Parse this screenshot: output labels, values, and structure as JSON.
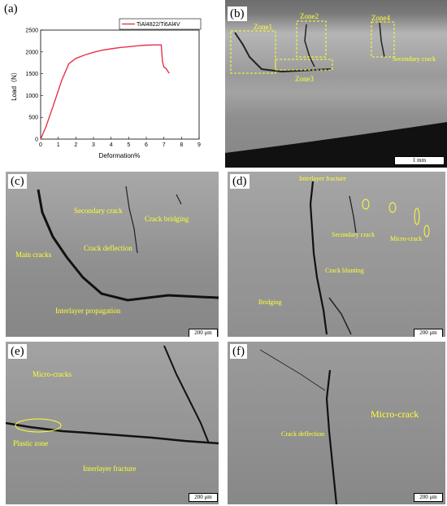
{
  "panels": {
    "a": {
      "label": "(a)"
    },
    "b": {
      "label": "(b)",
      "annotations": {
        "zone1": "Zone1",
        "zone2": "Zone2",
        "zone3": "Zone3",
        "zone4": "Zone4",
        "secondary": "Secondary crack"
      },
      "scale": "1 mm"
    },
    "c": {
      "label": "(c)",
      "annotations": {
        "secondary": "Secondary crack",
        "bridging": "Crack bridging",
        "main": "Main cracks",
        "deflection": "Crack deflection",
        "interlayer": "Interlayer propagation"
      },
      "scale": "200 μm"
    },
    "d": {
      "label": "(d)",
      "annotations": {
        "interlayer": "Interlayer fracture",
        "secondary": "Secondary crack",
        "micro": "Micro-crack",
        "blunting": "Crack blunting",
        "bridging": "Bridging"
      },
      "scale": "200 μm"
    },
    "e": {
      "label": "(e)",
      "annotations": {
        "micro": "Micro-cracks",
        "plastic": "Plastic zone",
        "interlayer": "Interlayer fracture"
      },
      "scale": "200 μm"
    },
    "f": {
      "label": "(f)",
      "annotations": {
        "micro": "Micro-crack",
        "deflection": "Crack deflection"
      },
      "scale": "200 μm"
    }
  },
  "chart_data": {
    "type": "line",
    "xlabel": "Deformation%",
    "ylabel": "Load（N）",
    "xlim": [
      0,
      9
    ],
    "ylim": [
      0,
      2500
    ],
    "xticks": [
      "0",
      "1",
      "2",
      "3",
      "4",
      "5",
      "6",
      "7",
      "8",
      "9"
    ],
    "yticks": [
      "0",
      "500",
      "1000",
      "1500",
      "2000",
      "2500"
    ],
    "legend_position": "top-right",
    "series": [
      {
        "name": "TiAl4822/Ti6Al4V",
        "color": "#e8334a",
        "x": [
          0,
          0.3,
          0.7,
          1.2,
          1.6,
          2.0,
          2.5,
          3.0,
          3.5,
          4.0,
          4.5,
          5.0,
          5.5,
          6.0,
          6.5,
          6.85,
          6.92,
          7.0,
          7.1,
          7.2,
          7.3
        ],
        "y": [
          0,
          280,
          750,
          1350,
          1730,
          1850,
          1930,
          1990,
          2040,
          2070,
          2100,
          2120,
          2140,
          2155,
          2160,
          2160,
          1780,
          1650,
          1630,
          1570,
          1510
        ]
      }
    ]
  }
}
